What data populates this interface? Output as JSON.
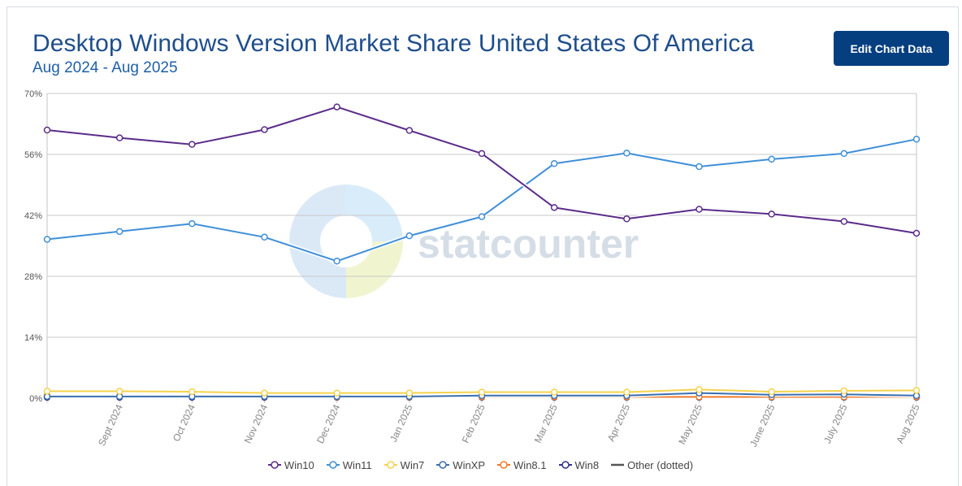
{
  "header": {
    "title": "Desktop Windows Version Market Share United States Of America",
    "subtitle": "Aug 2024 - Aug 2025",
    "edit_button": "Edit Chart Data"
  },
  "watermark": {
    "text": "statcounter"
  },
  "colors": {
    "Win10": "#5b2c8a",
    "Win11": "#3f8fd8",
    "Win7": "#f5d34c",
    "WinXP": "#3a6fae",
    "Win8.1": "#f07a29",
    "Win8": "#2e2e8a",
    "Other": "#555555"
  },
  "chart_data": {
    "type": "line",
    "x": [
      "Aug 2024",
      "Sept 2024",
      "Oct 2024",
      "Nov 2024",
      "Dec 2024",
      "Jan 2025",
      "Feb 2025",
      "Mar 2025",
      "Apr 2025",
      "May 2025",
      "June 2025",
      "July 2025",
      "Aug 2025"
    ],
    "x_tick_labels": [
      "Sept 2024",
      "Oct 2024",
      "Nov 2024",
      "Dec 2024",
      "Jan 2025",
      "Feb 2025",
      "Mar 2025",
      "Apr 2025",
      "May 2025",
      "June 2025",
      "July 2025",
      "Aug 2025"
    ],
    "y_ticks": [
      "0%",
      "14%",
      "28%",
      "42%",
      "56%",
      "70%"
    ],
    "ylim": [
      0,
      70
    ],
    "grid": true,
    "legend_position": "bottom",
    "series": [
      {
        "name": "Win10",
        "values": [
          61.6,
          59.8,
          58.3,
          61.7,
          66.9,
          61.5,
          56.2,
          43.8,
          41.2,
          43.4,
          42.3,
          40.6,
          37.9
        ]
      },
      {
        "name": "Win11",
        "values": [
          36.5,
          38.3,
          40.1,
          37.0,
          31.5,
          37.3,
          41.7,
          53.9,
          56.3,
          53.2,
          54.9,
          56.2,
          59.5
        ]
      },
      {
        "name": "Win7",
        "values": [
          1.6,
          1.6,
          1.5,
          1.2,
          1.2,
          1.2,
          1.4,
          1.4,
          1.4,
          2.0,
          1.5,
          1.7,
          1.8
        ]
      },
      {
        "name": "WinXP",
        "values": [
          0.4,
          0.4,
          0.4,
          0.4,
          0.4,
          0.4,
          0.6,
          0.6,
          0.6,
          1.2,
          0.8,
          0.9,
          0.6
        ]
      },
      {
        "name": "Win8.1",
        "values": [
          0.6,
          0.5,
          0.5,
          0.4,
          0.3,
          0.3,
          0.3,
          0.3,
          0.3,
          0.3,
          0.3,
          0.3,
          0.3
        ]
      },
      {
        "name": "Win8",
        "values": [
          0.2,
          0.2,
          0.2,
          0.2,
          0.2,
          0.2,
          0.2,
          0.2,
          0.2,
          0.2,
          0.2,
          0.2,
          0.2
        ]
      },
      {
        "name": "Other (dotted)",
        "values": [
          0.1,
          0.1,
          0.1,
          0.1,
          0.1,
          0.1,
          0.1,
          0.1,
          0.1,
          0.1,
          0.1,
          0.1,
          0.1
        ]
      }
    ]
  }
}
